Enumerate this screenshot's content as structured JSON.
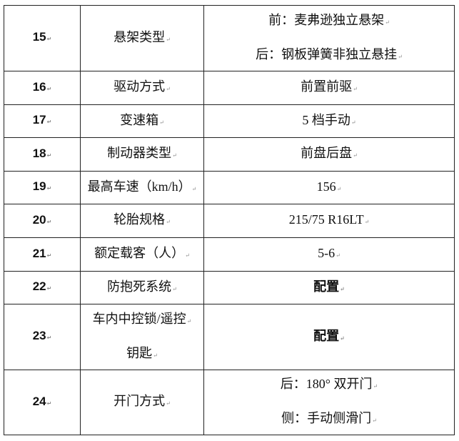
{
  "rows": [
    {
      "no": "15",
      "item": [
        "悬架类型"
      ],
      "value": [
        "前：麦弗逊独立悬架",
        "后：钢板弹簧非独立悬挂"
      ]
    },
    {
      "no": "16",
      "item": [
        "驱动方式"
      ],
      "value": [
        "前置前驱"
      ]
    },
    {
      "no": "17",
      "item": [
        "变速箱"
      ],
      "value": [
        "5 档手动"
      ]
    },
    {
      "no": "18",
      "item": [
        "制动器类型"
      ],
      "value": [
        "前盘后盘"
      ]
    },
    {
      "no": "19",
      "item": [
        "最高车速（km/h）"
      ],
      "value": [
        "156"
      ]
    },
    {
      "no": "20",
      "item": [
        "轮胎规格"
      ],
      "value": [
        "215/75 R16LT"
      ]
    },
    {
      "no": "21",
      "item": [
        "额定载客（人）"
      ],
      "value": [
        "5-6"
      ]
    },
    {
      "no": "22",
      "item": [
        "防抱死系统"
      ],
      "value": [
        "配置"
      ]
    },
    {
      "no": "23",
      "item": [
        "车内中控锁/遥控",
        "钥匙"
      ],
      "value": [
        "配置"
      ]
    },
    {
      "no": "24",
      "item": [
        "开门方式"
      ],
      "value": [
        "后：180° 双开门",
        "侧：手动侧滑门"
      ]
    }
  ]
}
